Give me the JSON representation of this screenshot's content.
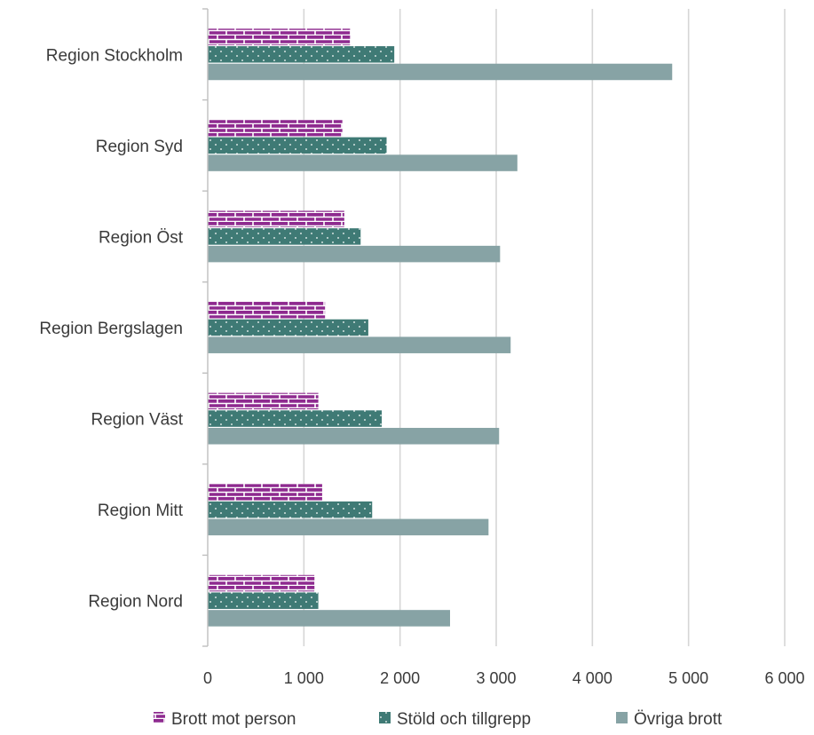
{
  "chart_data": {
    "type": "bar",
    "orientation": "horizontal",
    "title": "",
    "xlabel": "",
    "ylabel": "",
    "categories": [
      "Region Stockholm",
      "Region Syd",
      "Region Öst",
      "Region Bergslagen",
      "Region Väst",
      "Region Mitt",
      "Region Nord"
    ],
    "series": [
      {
        "name": "Brott mot person",
        "values": [
          1480,
          1400,
          1420,
          1220,
          1150,
          1190,
          1110
        ],
        "color": "#8e2a8f",
        "pattern": "brick"
      },
      {
        "name": "Stöld och tillgrepp",
        "values": [
          1940,
          1860,
          1590,
          1670,
          1810,
          1710,
          1150
        ],
        "color": "#3f7a75",
        "pattern": "dots"
      },
      {
        "name": "Övriga brott",
        "values": [
          4830,
          3220,
          3040,
          3150,
          3030,
          2920,
          2520
        ],
        "color": "#87a3a5",
        "pattern": "solid"
      }
    ],
    "xlim": [
      0,
      6000
    ],
    "xticks": [
      0,
      1000,
      2000,
      3000,
      4000,
      5000,
      6000
    ],
    "xtick_labels": [
      "0",
      "1 000",
      "2 000",
      "3 000",
      "4 000",
      "5 000",
      "6 000"
    ],
    "grid": "vertical",
    "legend_position": "bottom"
  }
}
